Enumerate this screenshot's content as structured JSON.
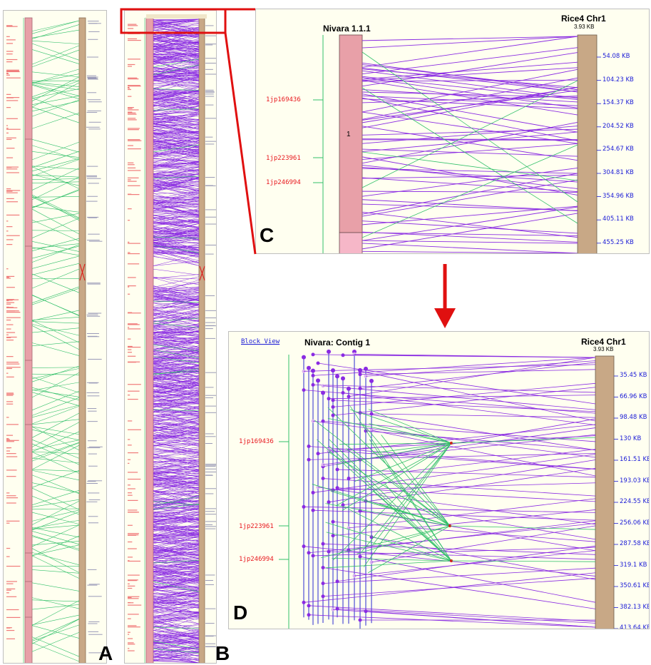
{
  "colors": {
    "background": "#fffff0",
    "query_bar": "#e8a0a8",
    "query_bar_light": "#f6b7c8",
    "reference_bar": "#c8a886",
    "synteny_purple": "#8a2be2",
    "synteny_green": "#33c06a",
    "marker_red": "#e8171d",
    "tick_blue": "#1a1ad6",
    "highlight_red": "#e01010"
  },
  "panel_a": {
    "label": "A"
  },
  "panel_b": {
    "label": "B"
  },
  "panel_c": {
    "label": "C",
    "query_title": "Nivara 1.1.1",
    "ref_title": "Rice4 Chr1",
    "ref_sub": "3.93 KB",
    "bar_number": "1",
    "markers": [
      "1jp169436",
      "1jp223961",
      "1jp246994"
    ],
    "ticks": [
      "54.08 KB",
      "104.23 KB",
      "154.37 KB",
      "204.52 KB",
      "254.67 KB",
      "304.81 KB",
      "354.96 KB",
      "405.11 KB",
      "455.25 KB"
    ]
  },
  "panel_d": {
    "label": "D",
    "link": "Block View",
    "query_title": "Nivara: Contig 1",
    "ref_title": "Rice4 Chr1",
    "ref_sub": "3.93 KB",
    "markers": [
      "1jp169436",
      "1jp223961",
      "1jp246994"
    ],
    "ticks": [
      "35.45 KB",
      "66.96 KB",
      "98.48 KB",
      "130 KB",
      "161.51 KB",
      "193.03 KB",
      "224.55 KB",
      "256.06 KB",
      "287.58 KB",
      "319.1 KB",
      "350.61 KB",
      "382.13 KB",
      "413.64 KB"
    ]
  }
}
